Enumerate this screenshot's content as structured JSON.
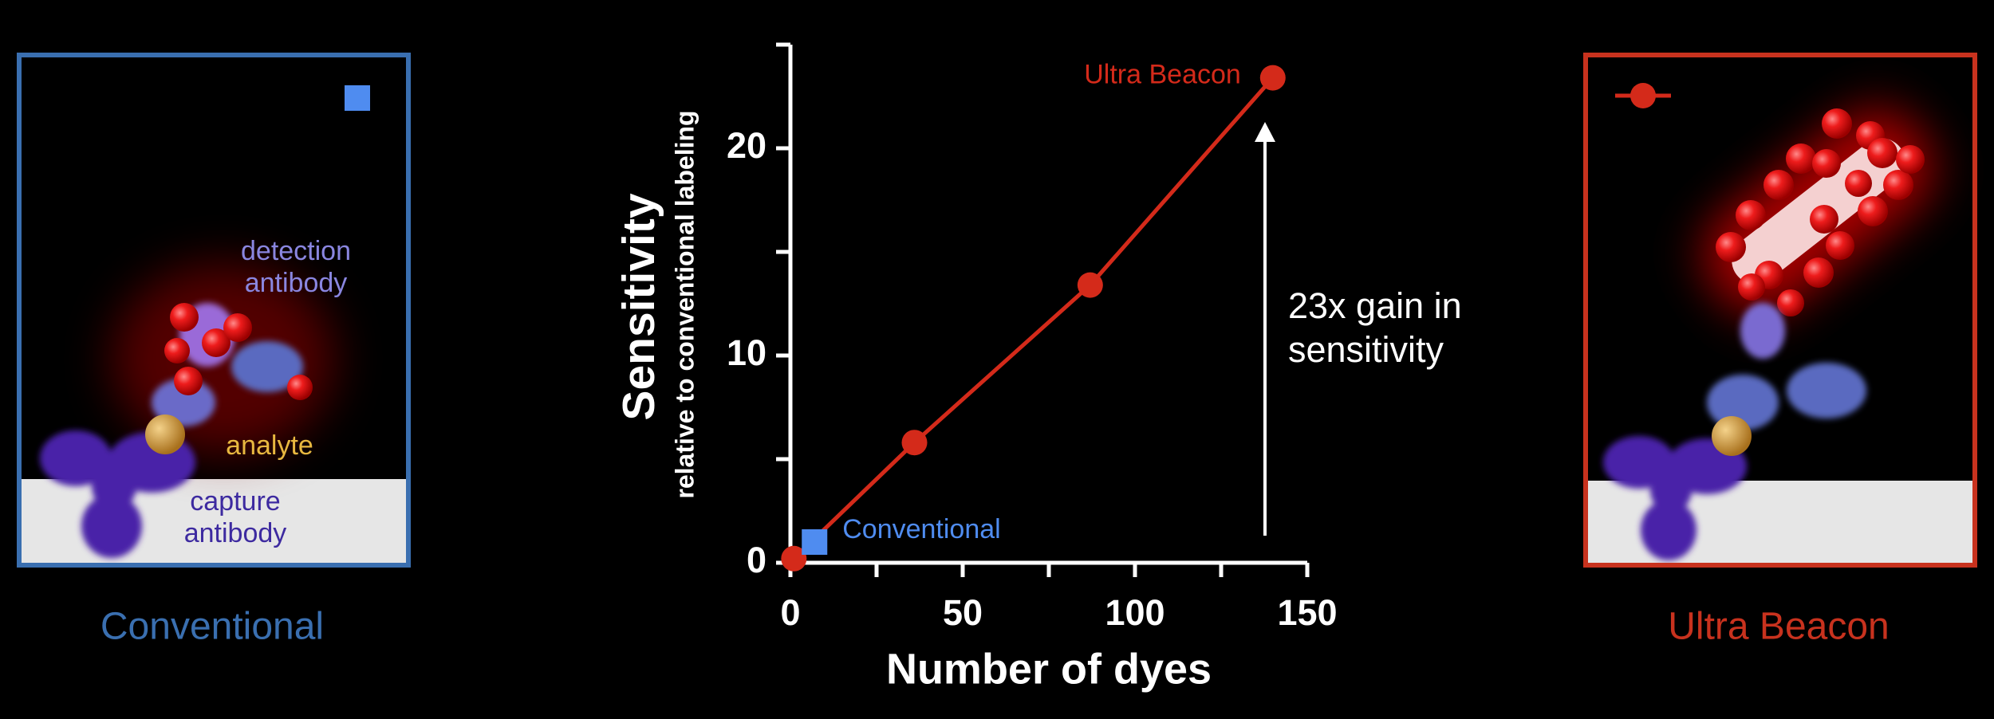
{
  "chart_data": {
    "type": "line",
    "y_label": "Sensitivity",
    "y_sublabel": "relative to conventional labeling",
    "x_label": "Number of dyes",
    "annotation": [
      "23x gain in",
      "sensitivity"
    ],
    "xlim": [
      0,
      150
    ],
    "ylim": [
      0,
      25
    ],
    "xticks": [
      0,
      50,
      100,
      150
    ],
    "yticks": [
      0,
      10,
      20
    ],
    "xminor_ticks": [
      25,
      75,
      125
    ],
    "yminor_ticks": [
      5,
      15,
      25
    ],
    "series": [
      {
        "name": "Ultra Beacon",
        "color": "#d42a1a",
        "marker": "circle",
        "x": [
          1,
          36,
          87,
          140
        ],
        "values": [
          0.2,
          5.8,
          13.4,
          23.4
        ]
      },
      {
        "name": "Conventional",
        "color": "#4f8cf0",
        "marker": "square",
        "x": [
          7
        ],
        "values": [
          1.0
        ]
      }
    ]
  },
  "illustration_labels": {
    "detection": [
      "detection",
      "antibody"
    ],
    "analyte": "analyte",
    "capture": [
      "capture",
      "antibody"
    ]
  }
}
